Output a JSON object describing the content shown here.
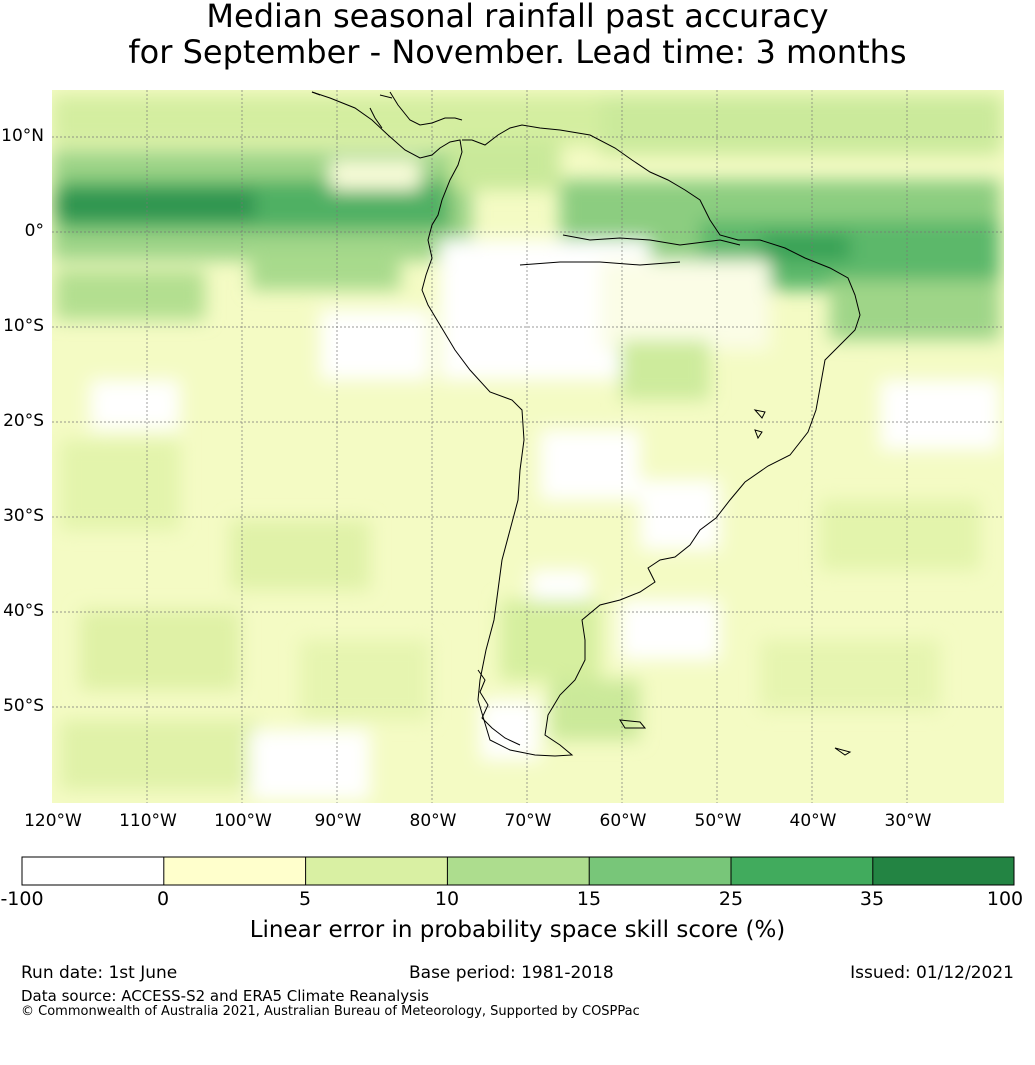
{
  "title_line1": "Median seasonal rainfall past accuracy",
  "title_line2": "for September - November. Lead time: 3 months",
  "map": {
    "lon_labels": [
      "120°W",
      "110°W",
      "100°W",
      "90°W",
      "80°W",
      "70°W",
      "60°W",
      "50°W",
      "40°W",
      "30°W"
    ],
    "lat_labels": [
      "10°N",
      "0°",
      "10°S",
      "20°S",
      "30°S",
      "40°S",
      "50°S"
    ],
    "lon_range": [
      -120,
      -20
    ],
    "lat_range": [
      -60,
      15
    ]
  },
  "colorbar": {
    "ticks": [
      "-100",
      "0",
      "5",
      "10",
      "15",
      "25",
      "35",
      "100"
    ],
    "colors": [
      "#ffffff",
      "#ffffcc",
      "#d9f0a3",
      "#addd8e",
      "#78c679",
      "#41ab5d",
      "#238443"
    ],
    "label": "Linear error in probability space skill score (%)"
  },
  "footer": {
    "run_date": "Run date: 1st June",
    "base_period": "Base period: 1981-2018",
    "issued": "Issued: 01/12/2021",
    "data_source": "Data source: ACCESS-S2 and ERA5 Climate Reanalysis",
    "copyright": "© Commonwealth of Australia 2021, Australian Bureau of Meteorology, Supported by COSPPac"
  }
}
